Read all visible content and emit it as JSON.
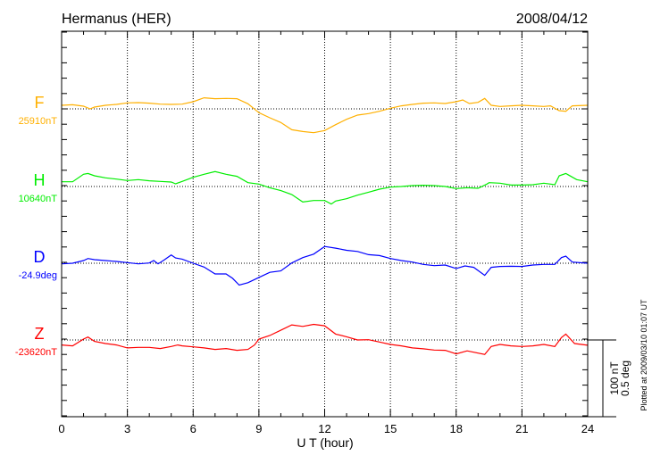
{
  "chart_data": {
    "type": "line",
    "title": "Hermanus (HER)",
    "date": "2008/04/12",
    "xlabel": "U T (hour)",
    "xlim": [
      0,
      24
    ],
    "x_ticks": [
      "0",
      "3",
      "6",
      "9",
      "12",
      "15",
      "18",
      "21",
      "24"
    ],
    "grid": true,
    "scale_bar": {
      "nt_label": "100 nT",
      "deg_label": "0.5 deg",
      "nt": 100,
      "deg": 0.5
    },
    "footer": "Plotted at 2009/03/10 01:07 UT",
    "series": [
      {
        "name": "F",
        "baseline_label": "25910nT",
        "color": "#ffb000",
        "points": [
          [
            0,
            4.7
          ],
          [
            0.5,
            5.4
          ],
          [
            1,
            3.5
          ],
          [
            1.3,
            0
          ],
          [
            1.5,
            2.3
          ],
          [
            2,
            4.7
          ],
          [
            2.5,
            5.8
          ],
          [
            3,
            7.8
          ],
          [
            3.5,
            8.1
          ],
          [
            4,
            7.4
          ],
          [
            4.5,
            6.2
          ],
          [
            5,
            5.8
          ],
          [
            5.5,
            6.2
          ],
          [
            6,
            9.3
          ],
          [
            6.5,
            14.4
          ],
          [
            7,
            13.2
          ],
          [
            7.5,
            13.6
          ],
          [
            8,
            13.2
          ],
          [
            8.5,
            6.6
          ],
          [
            9,
            -5
          ],
          [
            9.5,
            -11.6
          ],
          [
            10,
            -17.8
          ],
          [
            10.5,
            -27.2
          ],
          [
            11,
            -29.5
          ],
          [
            11.5,
            -31
          ],
          [
            12,
            -28.3
          ],
          [
            12.5,
            -20.6
          ],
          [
            13,
            -13.6
          ],
          [
            13.5,
            -8.1
          ],
          [
            14,
            -6.2
          ],
          [
            14.5,
            -3.1
          ],
          [
            15,
            0.8
          ],
          [
            15.5,
            3.9
          ],
          [
            16,
            5.8
          ],
          [
            16.5,
            7.4
          ],
          [
            17,
            7.8
          ],
          [
            17.5,
            7
          ],
          [
            18,
            9.3
          ],
          [
            18.3,
            11.6
          ],
          [
            18.6,
            7
          ],
          [
            19,
            8.5
          ],
          [
            19.3,
            13.6
          ],
          [
            19.6,
            4.7
          ],
          [
            20,
            3.1
          ],
          [
            20.5,
            3.9
          ],
          [
            21,
            4.7
          ],
          [
            21.5,
            3.9
          ],
          [
            22,
            3.1
          ],
          [
            22.3,
            3.9
          ],
          [
            22.7,
            -2.3
          ],
          [
            23,
            -3.1
          ],
          [
            23.3,
            3.9
          ],
          [
            24,
            4.7
          ]
        ]
      },
      {
        "name": "H",
        "baseline_label": "10640nT",
        "color": "#00ee00",
        "points": [
          [
            0,
            6.2
          ],
          [
            0.5,
            6.2
          ],
          [
            1,
            15.9
          ],
          [
            1.2,
            17
          ],
          [
            1.5,
            14
          ],
          [
            2,
            11.3
          ],
          [
            2.5,
            9.7
          ],
          [
            3,
            7.8
          ],
          [
            3.5,
            8.9
          ],
          [
            4,
            7.4
          ],
          [
            4.5,
            6.6
          ],
          [
            5,
            5.8
          ],
          [
            5.2,
            3.5
          ],
          [
            5.5,
            6.6
          ],
          [
            6,
            12
          ],
          [
            6.5,
            15.9
          ],
          [
            7,
            19.4
          ],
          [
            7.5,
            15.9
          ],
          [
            8,
            13.2
          ],
          [
            8.5,
            5
          ],
          [
            9,
            3.1
          ],
          [
            9.5,
            -1.6
          ],
          [
            10,
            -5.4
          ],
          [
            10.5,
            -10.5
          ],
          [
            11,
            -20.2
          ],
          [
            11.5,
            -18.2
          ],
          [
            12,
            -18.2
          ],
          [
            12.3,
            -22.9
          ],
          [
            12.5,
            -19
          ],
          [
            13,
            -15.9
          ],
          [
            13.5,
            -11.3
          ],
          [
            14,
            -7.4
          ],
          [
            14.5,
            -3.5
          ],
          [
            15,
            -0.8
          ],
          [
            15.5,
            0
          ],
          [
            16,
            1.2
          ],
          [
            16.5,
            1.6
          ],
          [
            17,
            1.2
          ],
          [
            17.5,
            0
          ],
          [
            18,
            -2.7
          ],
          [
            18.5,
            -1.6
          ],
          [
            19,
            -2.3
          ],
          [
            19.4,
            3.1
          ],
          [
            19.5,
            5
          ],
          [
            20,
            4.3
          ],
          [
            20.5,
            1.9
          ],
          [
            21,
            1.9
          ],
          [
            21.5,
            2.3
          ],
          [
            22,
            4.3
          ],
          [
            22.5,
            2.3
          ],
          [
            22.7,
            14
          ],
          [
            23,
            17
          ],
          [
            23.5,
            8.9
          ],
          [
            24,
            6.2
          ]
        ]
      },
      {
        "name": "D",
        "baseline_label": "-24.9deg",
        "color": "#0000ff",
        "points": [
          [
            0,
            -0.8
          ],
          [
            0.5,
            0
          ],
          [
            1,
            3.5
          ],
          [
            1.2,
            6.2
          ],
          [
            1.5,
            4.6
          ],
          [
            2,
            3.5
          ],
          [
            2.5,
            2.3
          ],
          [
            3,
            0.8
          ],
          [
            3.5,
            -0.8
          ],
          [
            4,
            0.4
          ],
          [
            4.2,
            3.5
          ],
          [
            4.4,
            -0.8
          ],
          [
            4.7,
            4.6
          ],
          [
            5,
            10.8
          ],
          [
            5.2,
            6.9
          ],
          [
            5.5,
            5.4
          ],
          [
            6,
            0
          ],
          [
            6.5,
            -5
          ],
          [
            7,
            -13.9
          ],
          [
            7.5,
            -13.9
          ],
          [
            7.8,
            -19.6
          ],
          [
            8.1,
            -28.5
          ],
          [
            8.5,
            -25.4
          ],
          [
            9,
            -18.5
          ],
          [
            9.5,
            -11.9
          ],
          [
            10,
            -10
          ],
          [
            10.5,
            0.4
          ],
          [
            11,
            7.3
          ],
          [
            11.5,
            11.9
          ],
          [
            12,
            21.9
          ],
          [
            12.5,
            19.6
          ],
          [
            13,
            16.9
          ],
          [
            13.5,
            15.4
          ],
          [
            14,
            11.2
          ],
          [
            14.5,
            10
          ],
          [
            15,
            6.2
          ],
          [
            15.5,
            3.5
          ],
          [
            16,
            1.5
          ],
          [
            16.5,
            -1.5
          ],
          [
            17,
            -3.1
          ],
          [
            17.5,
            -2.3
          ],
          [
            18,
            -6.9
          ],
          [
            18.4,
            -3.5
          ],
          [
            18.8,
            -5.4
          ],
          [
            19.3,
            -15.8
          ],
          [
            19.6,
            -5.4
          ],
          [
            20,
            -4.2
          ],
          [
            20.5,
            -3.9
          ],
          [
            21,
            -4.2
          ],
          [
            21.5,
            -2.3
          ],
          [
            22,
            -1.5
          ],
          [
            22.5,
            -1.5
          ],
          [
            22.8,
            7.3
          ],
          [
            23,
            9.2
          ],
          [
            23.3,
            1.5
          ],
          [
            24,
            0
          ]
        ]
      },
      {
        "name": "Z",
        "baseline_label": "-23620nT",
        "color": "#ff0000",
        "points": [
          [
            0,
            -6.5
          ],
          [
            0.5,
            -7.7
          ],
          [
            1,
            1.2
          ],
          [
            1.2,
            3.8
          ],
          [
            1.5,
            -1.9
          ],
          [
            2,
            -4.6
          ],
          [
            2.5,
            -6.5
          ],
          [
            3,
            -10.4
          ],
          [
            3.5,
            -9.6
          ],
          [
            4,
            -9.6
          ],
          [
            4.5,
            -11.2
          ],
          [
            5,
            -8.5
          ],
          [
            5.3,
            -6.5
          ],
          [
            5.5,
            -7.7
          ],
          [
            6,
            -8.9
          ],
          [
            6.5,
            -10.4
          ],
          [
            7,
            -12.3
          ],
          [
            7.5,
            -11.2
          ],
          [
            8,
            -13.5
          ],
          [
            8.5,
            -12.3
          ],
          [
            8.8,
            -6.5
          ],
          [
            9,
            1.2
          ],
          [
            9.5,
            5.8
          ],
          [
            10,
            12.7
          ],
          [
            10.5,
            19.6
          ],
          [
            11,
            17.7
          ],
          [
            11.5,
            20.4
          ],
          [
            12,
            18.5
          ],
          [
            12.5,
            7.7
          ],
          [
            13,
            4.2
          ],
          [
            13.5,
            0
          ],
          [
            14,
            0.4
          ],
          [
            14.5,
            -2.7
          ],
          [
            15,
            -5.8
          ],
          [
            15.5,
            -7.7
          ],
          [
            16,
            -10.4
          ],
          [
            16.5,
            -11.5
          ],
          [
            17,
            -13.1
          ],
          [
            17.5,
            -13.5
          ],
          [
            18,
            -18.1
          ],
          [
            18.5,
            -14.2
          ],
          [
            19.3,
            -18.8
          ],
          [
            19.6,
            -8.5
          ],
          [
            20,
            -5.8
          ],
          [
            20.5,
            -7.7
          ],
          [
            21,
            -8.5
          ],
          [
            21.5,
            -7.7
          ],
          [
            22,
            -5.8
          ],
          [
            22.5,
            -8.5
          ],
          [
            22.8,
            3.1
          ],
          [
            23,
            7.7
          ],
          [
            23.4,
            -4.6
          ],
          [
            24,
            -6.9
          ]
        ]
      }
    ]
  }
}
